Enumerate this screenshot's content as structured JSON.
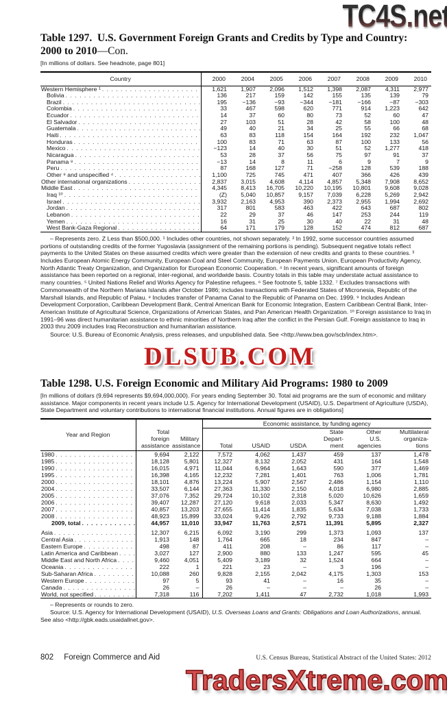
{
  "watermarks": {
    "top": "TC4S.net",
    "middle": "DLSUB.COM",
    "bottom": "TradersXtreme.com"
  },
  "table1297": {
    "title_label": "Table 1297.",
    "title_main": "U.S. Government Foreign Grants and Credits by Type and Country: 2000 to 2010",
    "title_suffix": "—Con.",
    "note": "[In millions of dollars. See headnote, page 801]",
    "columns": [
      "Country",
      "2000",
      "2004",
      "2005",
      "2006",
      "2007",
      "2008",
      "2009",
      "2010"
    ],
    "rows": [
      {
        "label": "Western Hemisphere ¹",
        "indent": 0,
        "values": [
          "1,621",
          "1,907",
          "2,096",
          "1,512",
          "1,398",
          "2,087",
          "4,311",
          "2,977"
        ]
      },
      {
        "label": "Bolivia",
        "indent": 1,
        "values": [
          "136",
          "217",
          "159",
          "142",
          "155",
          "135",
          "139",
          "79"
        ]
      },
      {
        "label": "Brazil",
        "indent": 1,
        "values": [
          "195",
          "−136",
          "−93",
          "−344",
          "−181",
          "−166",
          "−87",
          "−303"
        ]
      },
      {
        "label": "Colombia",
        "indent": 1,
        "values": [
          "33",
          "467",
          "598",
          "620",
          "771",
          "914",
          "1,223",
          "642"
        ]
      },
      {
        "label": "Ecuador",
        "indent": 1,
        "values": [
          "14",
          "37",
          "60",
          "80",
          "73",
          "52",
          "60",
          "47"
        ]
      },
      {
        "label": "El Salvador",
        "indent": 1,
        "values": [
          "27",
          "103",
          "51",
          "28",
          "42",
          "58",
          "100",
          "48"
        ]
      },
      {
        "label": "Guatemala",
        "indent": 1,
        "values": [
          "49",
          "40",
          "21",
          "34",
          "25",
          "55",
          "66",
          "68"
        ]
      },
      {
        "label": "Haiti",
        "indent": 1,
        "values": [
          "63",
          "83",
          "118",
          "154",
          "164",
          "192",
          "232",
          "1,047"
        ]
      },
      {
        "label": "Honduras",
        "indent": 1,
        "values": [
          "100",
          "83",
          "71",
          "63",
          "87",
          "100",
          "133",
          "56"
        ]
      },
      {
        "label": "Mexico",
        "indent": 1,
        "values": [
          "−123",
          "14",
          "40",
          "30",
          "51",
          "52",
          "1,277",
          "418"
        ]
      },
      {
        "label": "Nicaragua",
        "indent": 1,
        "values": [
          "53",
          "28",
          "37",
          "56",
          "75",
          "97",
          "91",
          "37"
        ]
      },
      {
        "label": "Panama ⁸",
        "indent": 1,
        "values": [
          "−13",
          "14",
          "8",
          "11",
          "6",
          "9",
          "7",
          "9"
        ]
      },
      {
        "label": "Peru",
        "indent": 1,
        "values": [
          "87",
          "168",
          "127",
          "71",
          "−258",
          "128",
          "539",
          "188"
        ]
      },
      {
        "label": "Other ⁹ and unspecified ⁴",
        "indent": 1,
        "values": [
          "1,100",
          "725",
          "745",
          "471",
          "407",
          "366",
          "426",
          "439"
        ]
      },
      {
        "label": "Other international organizations",
        "indent": 0,
        "values": [
          "2,837",
          "3,015",
          "4,608",
          "4,114",
          "4,857",
          "5,348",
          "7,908",
          "8,652"
        ]
      },
      {
        "label": "Middle East",
        "indent": 0,
        "values": [
          "4,345",
          "8,413",
          "16,705",
          "10,220",
          "10,195",
          "10,801",
          "9,608",
          "9,028"
        ]
      },
      {
        "label": "Iraq ¹⁰",
        "indent": 1,
        "values": [
          "(Z)",
          "5,040",
          "10,857",
          "9,157",
          "7,039",
          "6,228",
          "5,269",
          "2,942"
        ]
      },
      {
        "label": "Israel",
        "indent": 1,
        "values": [
          "3,932",
          "2,163",
          "4,953",
          "390",
          "2,373",
          "2,955",
          "1,994",
          "2,692"
        ]
      },
      {
        "label": "Jordan",
        "indent": 1,
        "values": [
          "317",
          "801",
          "583",
          "463",
          "422",
          "643",
          "687",
          "802"
        ]
      },
      {
        "label": "Lebanon",
        "indent": 1,
        "values": [
          "22",
          "29",
          "37",
          "46",
          "147",
          "253",
          "244",
          "119"
        ]
      },
      {
        "label": "Yemen",
        "indent": 1,
        "values": [
          "16",
          "31",
          "25",
          "30",
          "40",
          "22",
          "31",
          "48"
        ]
      },
      {
        "label": "West Bank-Gaza Regional",
        "indent": 1,
        "values": [
          "64",
          "171",
          "179",
          "128",
          "152",
          "474",
          "812",
          "687"
        ]
      }
    ],
    "footnotes": "– Represents zero. Z Less than $500,000. ¹ Includes other countries, not shown separately. ² In 1992, some successor countries assumed portions of outstanding credits of the former Yugoslavia (assignment of the remaining portions is pending). Subsequent negative totals reflect payments to the United States on these assumed credits which were greater than the extension of new credits and grants to these countries. ³ Includes European Atomic Energy Community, European Coal and Steel Community, European Payments Union, European Productivity Agency, North Atlantic Treaty Organization, and Organization for European Economic Cooperation. ⁴ In recent years, significant amounts of foreign assistance has been reported on a regional, inter-regional, and worldwide basis. Country totals in this table may understate actual assistance to many countries. ⁵ United Nations Relief and Works Agency for Palestine refugees. ⁶ See footnote 5, table 1332. ⁷ Excludes transactions with Commonwealth of the Northern Mariana Islands after October 1986; includes transactions with Federated States of Micronesia, Republic of the Marshall Islands, and Republic of Palau. ⁸ Includes transfer of Panama Canal to the Republic of Panama on Dec. 1999. ⁹ Includes Andean Development Corporation, Caribbean Development Bank, Central American Bank for Economic Integration, Eastern Caribbean Central Bank, Inter-American Institute of Agricultural Science, Organizations of American States, and Pan American Health Organization. ¹⁰ Foreign assistance to Iraq in 1991–96 was direct humanitarian assistance to ethnic minorities of Northern Iraq after the conflict in the Persian Gulf. Foreign assistance to Iraq in 2003 thru 2009 includes Iraq Reconstruction and humanitarian assistance.",
    "source": "Source: U.S. Bureau of Economic Analysis, press releases, and unpublished data. See <http://www.bea.gov/scb/index.htm>."
  },
  "table1298": {
    "title_label": "Table 1298.",
    "title_main": "U.S. Foreign Economic and Military Aid Programs: 1980 to 2009",
    "note": "[In millions of dollars (9,694 represents $9,694,000,000). For years ending September 30. Total aid programs are the sum of economic and military assistance. Major components in recent years include U.S. Agency for International Development (USAID), U.S. Department of Agriculture (USDA), State Department and voluntary contributions to international financial institutions. Annual figures are in obligations]",
    "header": {
      "year_region": "Year and Region",
      "total_foreign": "Total\nforeign\nassistance",
      "military": "Military\nassistance",
      "group": "Economic assistance, by funding agency",
      "econ_total": "Total",
      "usaid": "USAID",
      "usda": "USDA",
      "state": "State\nDepart-\nment",
      "other": "Other\nU.S.\nagencies",
      "multilateral": "Multilateral\norganiza-\ntions"
    },
    "rows": [
      {
        "label": "1980",
        "indent": 0,
        "values": [
          "9,694",
          "2,122",
          "7,572",
          "4,062",
          "1,437",
          "459",
          "137",
          "1,478"
        ]
      },
      {
        "label": "1985",
        "indent": 0,
        "values": [
          "18,128",
          "5,801",
          "12,327",
          "8,132",
          "2,052",
          "431",
          "164",
          "1,548"
        ]
      },
      {
        "label": "1990",
        "indent": 0,
        "values": [
          "16,015",
          "4,971",
          "11,044",
          "6,964",
          "1,643",
          "590",
          "377",
          "1,469"
        ]
      },
      {
        "label": "1995",
        "indent": 0,
        "values": [
          "16,398",
          "4,165",
          "12,232",
          "7,281",
          "1,401",
          "763",
          "1,006",
          "1,781"
        ]
      },
      {
        "label": "2000",
        "indent": 0,
        "values": [
          "18,101",
          "4,876",
          "13,224",
          "5,907",
          "2,567",
          "2,486",
          "1,154",
          "1,110"
        ]
      },
      {
        "label": "2004",
        "indent": 0,
        "values": [
          "33,507",
          "6,144",
          "27,363",
          "11,330",
          "2,150",
          "4,018",
          "6,980",
          "2,885"
        ]
      },
      {
        "label": "2005",
        "indent": 0,
        "values": [
          "37,076",
          "7,352",
          "29,724",
          "10,102",
          "2,318",
          "5,020",
          "10,626",
          "1,659"
        ]
      },
      {
        "label": "2006",
        "indent": 0,
        "values": [
          "39,407",
          "12,287",
          "27,120",
          "9,618",
          "2,033",
          "5,347",
          "8,630",
          "1,492"
        ]
      },
      {
        "label": "2007",
        "indent": 0,
        "values": [
          "40,857",
          "13,203",
          "27,655",
          "11,414",
          "1,835",
          "5,634",
          "7,038",
          "1,733"
        ]
      },
      {
        "label": "2008",
        "indent": 0,
        "values": [
          "48,923",
          "15,899",
          "33,024",
          "9,426",
          "2,792",
          "9,733",
          "9,188",
          "1,884"
        ]
      },
      {
        "label": "2009, total",
        "indent": 2,
        "bold": true,
        "values": [
          "44,957",
          "11,010",
          "33,947",
          "11,763",
          "2,571",
          "11,391",
          "5,895",
          "2,327"
        ]
      },
      {
        "label": "Asia",
        "indent": 0,
        "gap": true,
        "values": [
          "12,307",
          "6,215",
          "6,092",
          "3,190",
          "299",
          "1,373",
          "1,093",
          "137"
        ]
      },
      {
        "label": "Central Asia",
        "indent": 0,
        "values": [
          "1,913",
          "148",
          "1,764",
          "665",
          "18",
          "234",
          "847",
          "–"
        ]
      },
      {
        "label": "Eastern Europe",
        "indent": 0,
        "values": [
          "498",
          "87",
          "411",
          "208",
          "–",
          "86",
          "117",
          "–"
        ]
      },
      {
        "label": "Latin America and Caribbean",
        "indent": 0,
        "values": [
          "3,027",
          "127",
          "2,900",
          "880",
          "133",
          "1,247",
          "595",
          "45"
        ]
      },
      {
        "label": "Middle East and North Africa",
        "indent": 0,
        "values": [
          "9,460",
          "4,051",
          "5,409",
          "3,189",
          "32",
          "1,524",
          "664",
          "–"
        ]
      },
      {
        "label": "Oceania",
        "indent": 0,
        "values": [
          "222",
          "1",
          "221",
          "23",
          "–",
          "3",
          "196",
          "–"
        ]
      },
      {
        "label": "Sub-Saharan Africa",
        "indent": 0,
        "values": [
          "10,088",
          "260",
          "9,828",
          "2,155",
          "2,042",
          "4,175",
          "1,303",
          "153"
        ]
      },
      {
        "label": "Western Europe",
        "indent": 0,
        "values": [
          "97",
          "5",
          "93",
          "41",
          "–",
          "16",
          "35",
          "–"
        ]
      },
      {
        "label": "Canada",
        "indent": 0,
        "values": [
          "26",
          "–",
          "26",
          "–",
          "–",
          "–",
          "26",
          "–"
        ]
      },
      {
        "label": "World, not specified",
        "indent": 0,
        "values": [
          "7,318",
          "116",
          "7,202",
          "1,411",
          "47",
          "2,732",
          "1,018",
          "1,993"
        ]
      }
    ],
    "footnote": "– Represents or rounds to zero.",
    "source_pre": "Source: U.S. Agency for International Development (USAID), ",
    "source_italic": "U.S. Overseas Loans and Grants: Obligations and Loan Authorizations",
    "source_post": ", annual. See also <http://gbk.eads.usaidallnet.gov>."
  },
  "footer": {
    "page_number": "802",
    "section": "Foreign Commerce and Aid",
    "credit": "U.S. Census Bureau, Statistical Abstract of the United States: 2012"
  }
}
